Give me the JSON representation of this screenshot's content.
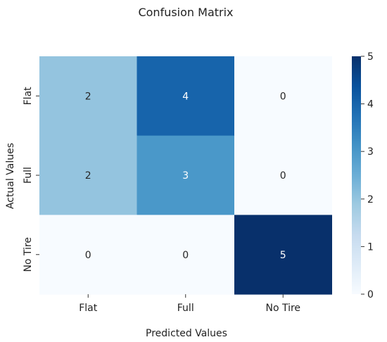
{
  "chart_data": {
    "type": "heatmap",
    "title": "Confusion Matrix",
    "xlabel": "Predicted Values",
    "ylabel": "Actual Values",
    "x_categories": [
      "Flat",
      "Full",
      "No Tire"
    ],
    "y_categories": [
      "Flat",
      "Full",
      "No Tire"
    ],
    "values": [
      [
        2,
        4,
        0
      ],
      [
        2,
        3,
        0
      ],
      [
        0,
        0,
        5
      ]
    ],
    "colormap": "Blues",
    "vmin": 0,
    "vmax": 5,
    "colorbar_ticks": [
      0,
      1,
      2,
      3,
      4,
      5
    ],
    "annotations": true
  }
}
